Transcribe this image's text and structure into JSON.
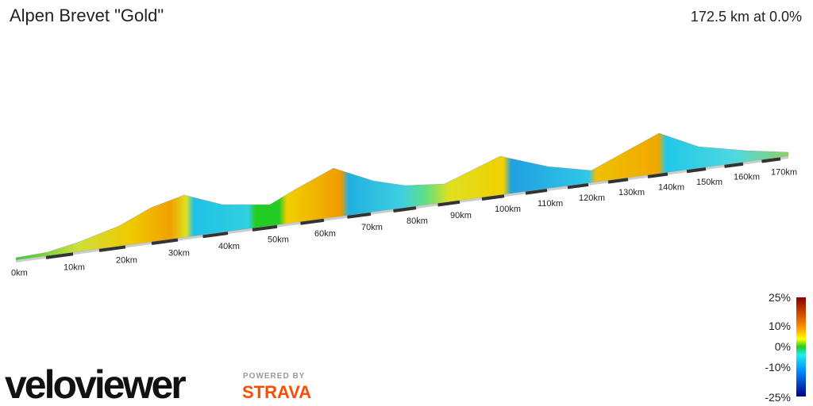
{
  "header": {
    "title": "Alpen Brevet \"Gold\"",
    "summary": "172.5 km at 0.0%"
  },
  "distance_labels": [
    "0km",
    "10km",
    "20km",
    "30km",
    "40km",
    "50km",
    "60km",
    "70km",
    "80km",
    "90km",
    "100km",
    "110km",
    "120km",
    "130km",
    "140km",
    "150km",
    "160km",
    "170km"
  ],
  "gradient_legend": [
    "25%",
    "10%",
    "0%",
    "-10%",
    "-25%"
  ],
  "branding": {
    "logo": "veloviewer",
    "powered_by": "POWERED BY",
    "partner": "STRAVA"
  }
}
